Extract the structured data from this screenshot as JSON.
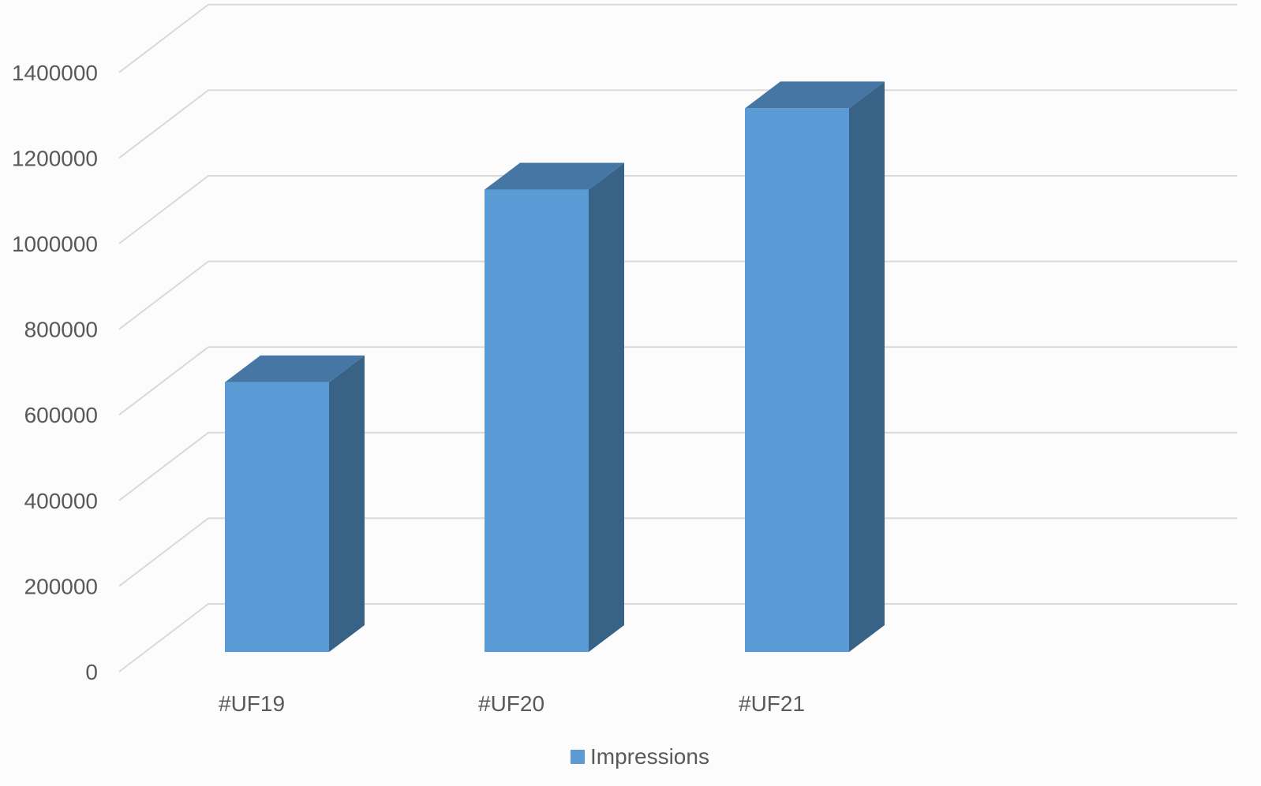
{
  "chart_data": {
    "type": "bar",
    "style": "3d-column",
    "categories": [
      "#UF19",
      "#UF20",
      "#UF21"
    ],
    "series": [
      {
        "name": "Impressions",
        "values": [
          630000,
          1080000,
          1270000
        ],
        "color": "#5b9bd5"
      }
    ],
    "y_ticks": [
      "0",
      "200000",
      "400000",
      "600000",
      "800000",
      "1000000",
      "1200000",
      "1400000"
    ],
    "ylim": [
      0,
      1400000
    ],
    "grid": true,
    "legend": {
      "position": "bottom",
      "label": "Impressions"
    },
    "colors": {
      "bar_front": "#5b9bd5",
      "bar_top": "#4677a4",
      "bar_side": "#386387",
      "grid": "#d9d9d9",
      "text": "#595959"
    }
  }
}
